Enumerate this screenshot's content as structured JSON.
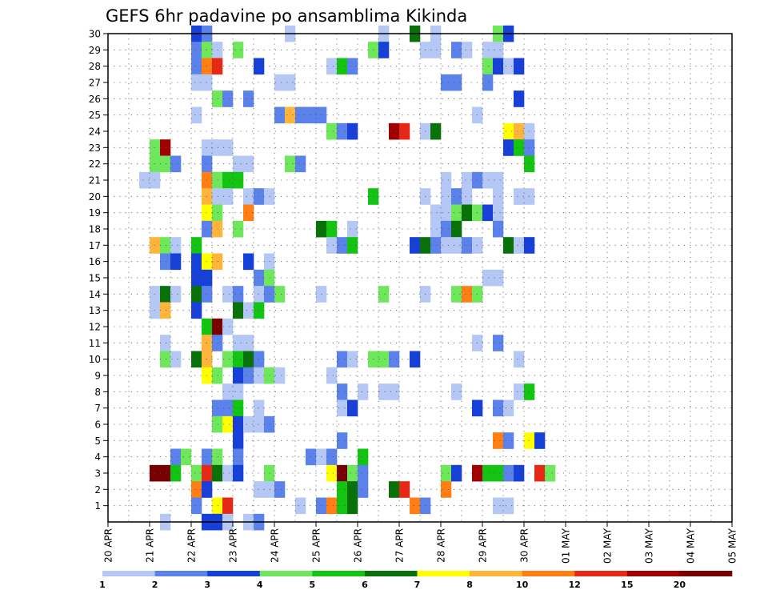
{
  "chart_data": {
    "type": "heatmap",
    "title": "GEFS 6hr padavine po ansamblima Kikinda",
    "xlabel": "",
    "ylabel": "",
    "x_tick_labels": [
      "20 APR",
      "21 APR",
      "22 APR",
      "23 APR",
      "24 APR",
      "25 APR",
      "26 APR",
      "27 APR",
      "28 APR",
      "29 APR",
      "30 APR",
      "01 MAY",
      "02 MAY",
      "03 MAY",
      "04 MAY",
      "05 MAY"
    ],
    "y_tick_labels": [
      "1",
      "2",
      "3",
      "4",
      "5",
      "6",
      "7",
      "8",
      "9",
      "10",
      "11",
      "12",
      "13",
      "14",
      "15",
      "16",
      "17",
      "18",
      "19",
      "20",
      "21",
      "22",
      "23",
      "24",
      "25",
      "26",
      "27",
      "28",
      "29",
      "30"
    ],
    "x_range_days": [
      0,
      15
    ],
    "y_range": [
      0,
      30
    ],
    "grid": true,
    "color_scale": {
      "levels": [
        "1",
        "2",
        "3",
        "4",
        "5",
        "6",
        "7",
        "8",
        "10",
        "12",
        "15",
        "20"
      ],
      "colors": [
        "#b4c7f5",
        "#5a82ea",
        "#1740d8",
        "#6ee75b",
        "#13c413",
        "#087208",
        "#ffff00",
        "#ffb43c",
        "#ff7f14",
        "#e62814",
        "#a00000",
        "#780000"
      ]
    },
    "data_units": "each cell: [ensemble member, time step (6 h, 0 = 20 APR 00Z), precipitation class 1-12]",
    "cells": [
      [
        30,
        8,
        3
      ],
      [
        30,
        9,
        2
      ],
      [
        30,
        17,
        1
      ],
      [
        30,
        26,
        1
      ],
      [
        30,
        29,
        6
      ],
      [
        30,
        31,
        1
      ],
      [
        30,
        37,
        4
      ],
      [
        30,
        38,
        3
      ],
      [
        29,
        8,
        2
      ],
      [
        29,
        9,
        4
      ],
      [
        29,
        10,
        1
      ],
      [
        29,
        12,
        4
      ],
      [
        29,
        25,
        4
      ],
      [
        29,
        26,
        3
      ],
      [
        29,
        30,
        1
      ],
      [
        29,
        31,
        1
      ],
      [
        29,
        33,
        2
      ],
      [
        29,
        34,
        1
      ],
      [
        29,
        36,
        1
      ],
      [
        29,
        37,
        1
      ],
      [
        28,
        8,
        2
      ],
      [
        28,
        9,
        9
      ],
      [
        28,
        10,
        10
      ],
      [
        28,
        14,
        3
      ],
      [
        28,
        21,
        1
      ],
      [
        28,
        22,
        5
      ],
      [
        28,
        23,
        2
      ],
      [
        28,
        36,
        4
      ],
      [
        28,
        37,
        3
      ],
      [
        28,
        38,
        1
      ],
      [
        28,
        39,
        3
      ],
      [
        27,
        8,
        1
      ],
      [
        27,
        9,
        1
      ],
      [
        27,
        16,
        1
      ],
      [
        27,
        17,
        1
      ],
      [
        27,
        32,
        2
      ],
      [
        27,
        33,
        2
      ],
      [
        27,
        36,
        2
      ],
      [
        26,
        10,
        4
      ],
      [
        26,
        11,
        2
      ],
      [
        26,
        13,
        2
      ],
      [
        26,
        39,
        3
      ],
      [
        25,
        8,
        1
      ],
      [
        25,
        16,
        2
      ],
      [
        25,
        17,
        8
      ],
      [
        25,
        18,
        2
      ],
      [
        25,
        19,
        2
      ],
      [
        25,
        20,
        2
      ],
      [
        25,
        35,
        1
      ],
      [
        24,
        21,
        4
      ],
      [
        24,
        22,
        2
      ],
      [
        24,
        23,
        3
      ],
      [
        24,
        27,
        11
      ],
      [
        24,
        28,
        10
      ],
      [
        24,
        30,
        1
      ],
      [
        24,
        31,
        6
      ],
      [
        24,
        38,
        7
      ],
      [
        24,
        39,
        8
      ],
      [
        24,
        40,
        1
      ],
      [
        23,
        4,
        4
      ],
      [
        23,
        5,
        11
      ],
      [
        23,
        9,
        1
      ],
      [
        23,
        10,
        1
      ],
      [
        23,
        11,
        1
      ],
      [
        23,
        38,
        3
      ],
      [
        23,
        39,
        5
      ],
      [
        23,
        40,
        2
      ],
      [
        22,
        4,
        4
      ],
      [
        22,
        5,
        4
      ],
      [
        22,
        6,
        2
      ],
      [
        22,
        9,
        2
      ],
      [
        22,
        12,
        1
      ],
      [
        22,
        13,
        1
      ],
      [
        22,
        17,
        4
      ],
      [
        22,
        18,
        2
      ],
      [
        22,
        40,
        5
      ],
      [
        21,
        3,
        1
      ],
      [
        21,
        4,
        1
      ],
      [
        21,
        9,
        9
      ],
      [
        21,
        10,
        4
      ],
      [
        21,
        11,
        5
      ],
      [
        21,
        12,
        5
      ],
      [
        21,
        32,
        1
      ],
      [
        21,
        34,
        1
      ],
      [
        21,
        35,
        2
      ],
      [
        21,
        36,
        1
      ],
      [
        21,
        37,
        1
      ],
      [
        20,
        9,
        8
      ],
      [
        20,
        10,
        1
      ],
      [
        20,
        11,
        1
      ],
      [
        20,
        13,
        1
      ],
      [
        20,
        14,
        2
      ],
      [
        20,
        15,
        1
      ],
      [
        20,
        25,
        5
      ],
      [
        20,
        30,
        1
      ],
      [
        20,
        32,
        1
      ],
      [
        20,
        33,
        2
      ],
      [
        20,
        34,
        1
      ],
      [
        20,
        37,
        1
      ],
      [
        20,
        39,
        1
      ],
      [
        20,
        40,
        1
      ],
      [
        19,
        9,
        7
      ],
      [
        19,
        10,
        4
      ],
      [
        19,
        13,
        9
      ],
      [
        19,
        31,
        1
      ],
      [
        19,
        32,
        1
      ],
      [
        19,
        33,
        4
      ],
      [
        19,
        34,
        6
      ],
      [
        19,
        35,
        4
      ],
      [
        19,
        36,
        3
      ],
      [
        19,
        37,
        1
      ],
      [
        18,
        9,
        2
      ],
      [
        18,
        10,
        8
      ],
      [
        18,
        12,
        4
      ],
      [
        18,
        20,
        6
      ],
      [
        18,
        21,
        5
      ],
      [
        18,
        23,
        1
      ],
      [
        18,
        31,
        1
      ],
      [
        18,
        32,
        2
      ],
      [
        18,
        33,
        6
      ],
      [
        18,
        37,
        2
      ],
      [
        17,
        4,
        8
      ],
      [
        17,
        5,
        4
      ],
      [
        17,
        6,
        1
      ],
      [
        17,
        8,
        5
      ],
      [
        17,
        21,
        1
      ],
      [
        17,
        22,
        2
      ],
      [
        17,
        23,
        5
      ],
      [
        17,
        29,
        3
      ],
      [
        17,
        30,
        6
      ],
      [
        17,
        31,
        2
      ],
      [
        17,
        32,
        1
      ],
      [
        17,
        33,
        1
      ],
      [
        17,
        34,
        2
      ],
      [
        17,
        35,
        1
      ],
      [
        17,
        38,
        6
      ],
      [
        17,
        39,
        1
      ],
      [
        17,
        40,
        3
      ],
      [
        16,
        5,
        2
      ],
      [
        16,
        6,
        3
      ],
      [
        16,
        8,
        3
      ],
      [
        16,
        9,
        7
      ],
      [
        16,
        10,
        8
      ],
      [
        16,
        13,
        3
      ],
      [
        16,
        15,
        1
      ],
      [
        15,
        8,
        3
      ],
      [
        15,
        9,
        3
      ],
      [
        15,
        14,
        2
      ],
      [
        15,
        15,
        4
      ],
      [
        15,
        36,
        1
      ],
      [
        15,
        37,
        1
      ],
      [
        14,
        4,
        1
      ],
      [
        14,
        5,
        6
      ],
      [
        14,
        6,
        1
      ],
      [
        14,
        8,
        6
      ],
      [
        14,
        9,
        2
      ],
      [
        14,
        11,
        1
      ],
      [
        14,
        12,
        2
      ],
      [
        14,
        14,
        1
      ],
      [
        14,
        15,
        2
      ],
      [
        14,
        16,
        4
      ],
      [
        14,
        20,
        1
      ],
      [
        14,
        26,
        4
      ],
      [
        14,
        30,
        1
      ],
      [
        14,
        33,
        4
      ],
      [
        14,
        34,
        9
      ],
      [
        14,
        35,
        4
      ],
      [
        13,
        4,
        1
      ],
      [
        13,
        5,
        8
      ],
      [
        13,
        8,
        3
      ],
      [
        13,
        12,
        6
      ],
      [
        13,
        13,
        1
      ],
      [
        13,
        14,
        5
      ],
      [
        12,
        9,
        5
      ],
      [
        12,
        10,
        12
      ],
      [
        12,
        11,
        1
      ],
      [
        11,
        5,
        1
      ],
      [
        11,
        9,
        8
      ],
      [
        11,
        10,
        2
      ],
      [
        11,
        12,
        1
      ],
      [
        11,
        13,
        1
      ],
      [
        11,
        35,
        1
      ],
      [
        11,
        37,
        2
      ],
      [
        10,
        5,
        4
      ],
      [
        10,
        6,
        1
      ],
      [
        10,
        8,
        6
      ],
      [
        10,
        9,
        8
      ],
      [
        10,
        11,
        4
      ],
      [
        10,
        12,
        5
      ],
      [
        10,
        13,
        6
      ],
      [
        10,
        14,
        2
      ],
      [
        10,
        22,
        2
      ],
      [
        10,
        23,
        1
      ],
      [
        10,
        25,
        4
      ],
      [
        10,
        26,
        4
      ],
      [
        10,
        27,
        2
      ],
      [
        10,
        29,
        3
      ],
      [
        10,
        39,
        1
      ],
      [
        9,
        9,
        7
      ],
      [
        9,
        10,
        4
      ],
      [
        9,
        12,
        3
      ],
      [
        9,
        13,
        2
      ],
      [
        9,
        14,
        1
      ],
      [
        9,
        15,
        4
      ],
      [
        9,
        16,
        1
      ],
      [
        9,
        21,
        1
      ],
      [
        8,
        11,
        1
      ],
      [
        8,
        12,
        1
      ],
      [
        8,
        22,
        2
      ],
      [
        8,
        24,
        1
      ],
      [
        8,
        26,
        1
      ],
      [
        8,
        27,
        1
      ],
      [
        8,
        33,
        1
      ],
      [
        8,
        39,
        1
      ],
      [
        8,
        40,
        5
      ],
      [
        7,
        10,
        2
      ],
      [
        7,
        11,
        2
      ],
      [
        7,
        12,
        5
      ],
      [
        7,
        14,
        1
      ],
      [
        7,
        22,
        1
      ],
      [
        7,
        23,
        3
      ],
      [
        7,
        35,
        3
      ],
      [
        7,
        37,
        2
      ],
      [
        7,
        38,
        1
      ],
      [
        6,
        10,
        4
      ],
      [
        6,
        11,
        7
      ],
      [
        6,
        12,
        3
      ],
      [
        6,
        13,
        1
      ],
      [
        6,
        14,
        1
      ],
      [
        6,
        15,
        2
      ],
      [
        5,
        12,
        3
      ],
      [
        5,
        22,
        2
      ],
      [
        5,
        37,
        9
      ],
      [
        5,
        38,
        2
      ],
      [
        5,
        40,
        7
      ],
      [
        5,
        41,
        3
      ],
      [
        4,
        6,
        2
      ],
      [
        4,
        7,
        4
      ],
      [
        4,
        9,
        2
      ],
      [
        4,
        10,
        4
      ],
      [
        4,
        12,
        2
      ],
      [
        4,
        19,
        2
      ],
      [
        4,
        20,
        1
      ],
      [
        4,
        21,
        2
      ],
      [
        4,
        24,
        5
      ],
      [
        3,
        4,
        12
      ],
      [
        3,
        5,
        12
      ],
      [
        3,
        6,
        5
      ],
      [
        3,
        8,
        4
      ],
      [
        3,
        9,
        10
      ],
      [
        3,
        10,
        6
      ],
      [
        3,
        11,
        1
      ],
      [
        3,
        12,
        3
      ],
      [
        3,
        15,
        4
      ],
      [
        3,
        21,
        7
      ],
      [
        3,
        22,
        12
      ],
      [
        3,
        23,
        4
      ],
      [
        3,
        24,
        2
      ],
      [
        3,
        32,
        4
      ],
      [
        3,
        33,
        3
      ],
      [
        3,
        35,
        11
      ],
      [
        3,
        36,
        5
      ],
      [
        3,
        37,
        5
      ],
      [
        3,
        38,
        2
      ],
      [
        3,
        39,
        3
      ],
      [
        3,
        41,
        10
      ],
      [
        3,
        42,
        4
      ],
      [
        2,
        8,
        9
      ],
      [
        2,
        9,
        3
      ],
      [
        2,
        14,
        1
      ],
      [
        2,
        15,
        1
      ],
      [
        2,
        16,
        2
      ],
      [
        2,
        22,
        5
      ],
      [
        2,
        23,
        6
      ],
      [
        2,
        24,
        2
      ],
      [
        2,
        27,
        6
      ],
      [
        2,
        28,
        10
      ],
      [
        2,
        32,
        9
      ],
      [
        1,
        8,
        2
      ],
      [
        1,
        10,
        7
      ],
      [
        1,
        11,
        10
      ],
      [
        1,
        18,
        1
      ],
      [
        1,
        20,
        2
      ],
      [
        1,
        21,
        9
      ],
      [
        1,
        22,
        5
      ],
      [
        1,
        23,
        6
      ],
      [
        1,
        29,
        9
      ],
      [
        1,
        30,
        2
      ],
      [
        1,
        37,
        1
      ],
      [
        1,
        38,
        1
      ],
      [
        0,
        5,
        1
      ],
      [
        0,
        9,
        3
      ],
      [
        0,
        10,
        3
      ],
      [
        0,
        11,
        1
      ],
      [
        0,
        13,
        1
      ],
      [
        0,
        14,
        2
      ]
    ]
  }
}
